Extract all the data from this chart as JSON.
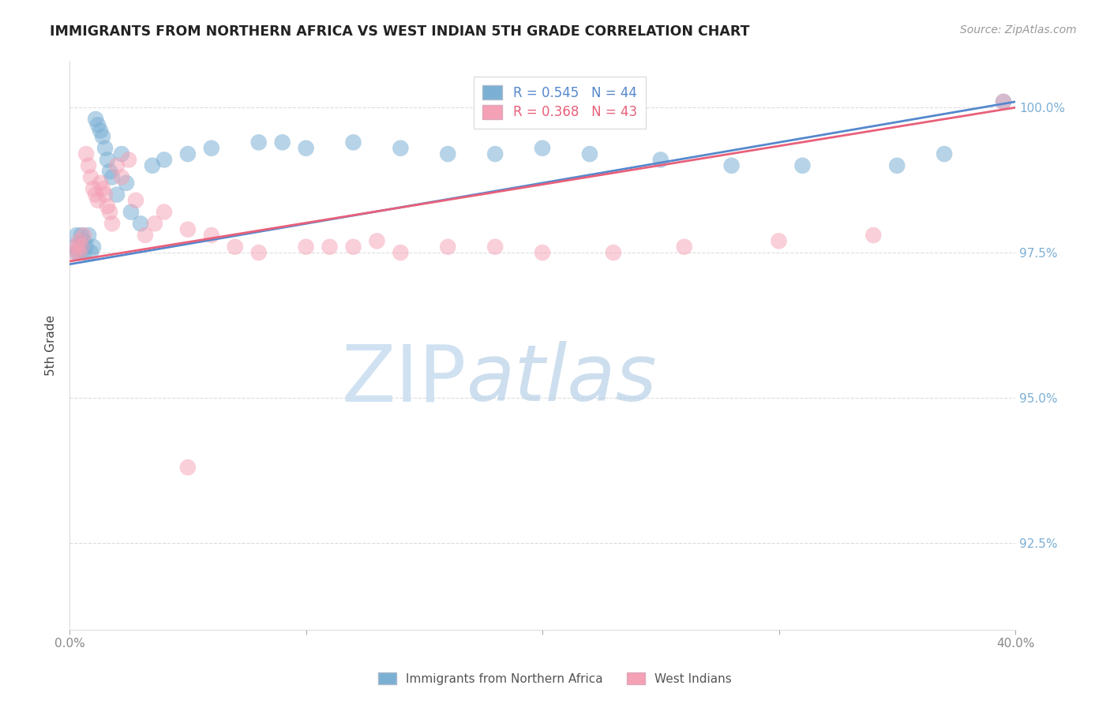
{
  "title": "IMMIGRANTS FROM NORTHERN AFRICA VS WEST INDIAN 5TH GRADE CORRELATION CHART",
  "source_text": "Source: ZipAtlas.com",
  "ylabel": "5th Grade",
  "x_min": 0.0,
  "x_max": 0.4,
  "y_min": 91.0,
  "y_max": 100.8,
  "yticks": [
    92.5,
    95.0,
    97.5,
    100.0
  ],
  "ytick_labels": [
    "92.5%",
    "95.0%",
    "97.5%",
    "100.0%"
  ],
  "xticks": [
    0.0,
    0.1,
    0.2,
    0.3,
    0.4
  ],
  "legend_R1": "R = 0.545",
  "legend_N1": "N = 44",
  "legend_R2": "R = 0.368",
  "legend_N2": "N = 43",
  "color_blue": "#7bafd4",
  "color_pink": "#f4a0b5",
  "color_blue_line": "#5588cc",
  "color_pink_line": "#e8607a",
  "color_right_axis": "#7bafd4",
  "color_grid": "#dddddd",
  "blue_x": [
    0.002,
    0.003,
    0.003,
    0.004,
    0.005,
    0.005,
    0.006,
    0.006,
    0.007,
    0.008,
    0.009,
    0.01,
    0.011,
    0.012,
    0.013,
    0.014,
    0.015,
    0.016,
    0.017,
    0.018,
    0.02,
    0.022,
    0.024,
    0.026,
    0.03,
    0.035,
    0.04,
    0.05,
    0.06,
    0.08,
    0.09,
    0.1,
    0.12,
    0.14,
    0.16,
    0.18,
    0.2,
    0.22,
    0.25,
    0.28,
    0.31,
    0.35,
    0.37,
    0.395
  ],
  "blue_y": [
    97.6,
    97.5,
    97.8,
    97.5,
    97.6,
    97.8,
    97.5,
    97.7,
    97.6,
    97.8,
    97.5,
    97.6,
    99.8,
    99.7,
    99.6,
    99.5,
    99.3,
    99.1,
    98.9,
    98.8,
    98.5,
    99.2,
    98.7,
    98.2,
    98.0,
    99.0,
    99.1,
    99.2,
    99.3,
    99.4,
    99.4,
    99.3,
    99.4,
    99.3,
    99.2,
    99.2,
    99.3,
    99.2,
    99.1,
    99.0,
    99.0,
    99.0,
    99.2,
    100.1
  ],
  "pink_x": [
    0.002,
    0.003,
    0.004,
    0.004,
    0.005,
    0.006,
    0.007,
    0.008,
    0.009,
    0.01,
    0.011,
    0.012,
    0.013,
    0.014,
    0.015,
    0.016,
    0.017,
    0.018,
    0.02,
    0.022,
    0.025,
    0.028,
    0.032,
    0.036,
    0.04,
    0.05,
    0.06,
    0.08,
    0.1,
    0.12,
    0.14,
    0.16,
    0.18,
    0.2,
    0.23,
    0.26,
    0.3,
    0.34,
    0.05,
    0.07,
    0.11,
    0.13,
    0.395
  ],
  "pink_y": [
    97.5,
    97.6,
    97.5,
    97.7,
    97.6,
    97.8,
    99.2,
    99.0,
    98.8,
    98.6,
    98.5,
    98.4,
    98.7,
    98.6,
    98.5,
    98.3,
    98.2,
    98.0,
    99.0,
    98.8,
    99.1,
    98.4,
    97.8,
    98.0,
    98.2,
    97.9,
    97.8,
    97.5,
    97.6,
    97.6,
    97.5,
    97.6,
    97.6,
    97.5,
    97.5,
    97.6,
    97.7,
    97.8,
    93.8,
    97.6,
    97.6,
    97.7,
    100.1
  ]
}
